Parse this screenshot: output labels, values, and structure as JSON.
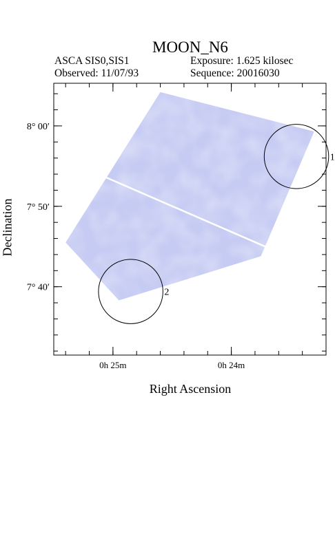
{
  "chart_data": {
    "type": "heatmap",
    "title": "MOON_N6",
    "info": {
      "instrument": "ASCA SIS0,SIS1",
      "exposure": "Exposure: 1.625 kilosec",
      "observed": "Observed: 11/07/93",
      "sequence": "Sequence: 20016030"
    },
    "xlabel": "Right Ascension",
    "ylabel": "Declination",
    "x_ticks": [
      {
        "label": "0h 25m",
        "ra_min": 25.0
      },
      {
        "label": "0h 24m",
        "ra_min": 24.0
      }
    ],
    "y_ticks": [
      {
        "label": "8° 00′",
        "dec_arcmin": 480
      },
      {
        "label": "7° 50′",
        "dec_arcmin": 470
      },
      {
        "label": "7° 40′",
        "dec_arcmin": 460
      }
    ],
    "xlim_ra_min": [
      25.5,
      23.2
    ],
    "ylim_dec_arcmin": [
      451.5,
      485.3
    ],
    "image_region_corners_ra_dec": [
      [
        24.6,
        484.2
      ],
      [
        23.3,
        479.3
      ],
      [
        23.75,
        463.8
      ],
      [
        24.95,
        458.3
      ],
      [
        25.4,
        465.5
      ]
    ],
    "source_regions": [
      {
        "label": "1",
        "ra_min": 23.45,
        "dec_arcmin": 476.2,
        "radius_arcmin": 4.0
      },
      {
        "label": "2",
        "ra_min": 24.85,
        "dec_arcmin": 459.4,
        "radius_arcmin": 4.0
      }
    ],
    "grid": false,
    "colors": {
      "image": "#c6cbf3",
      "background": "#ffffff",
      "circle": "#000000",
      "gap": "#ffffff"
    }
  }
}
